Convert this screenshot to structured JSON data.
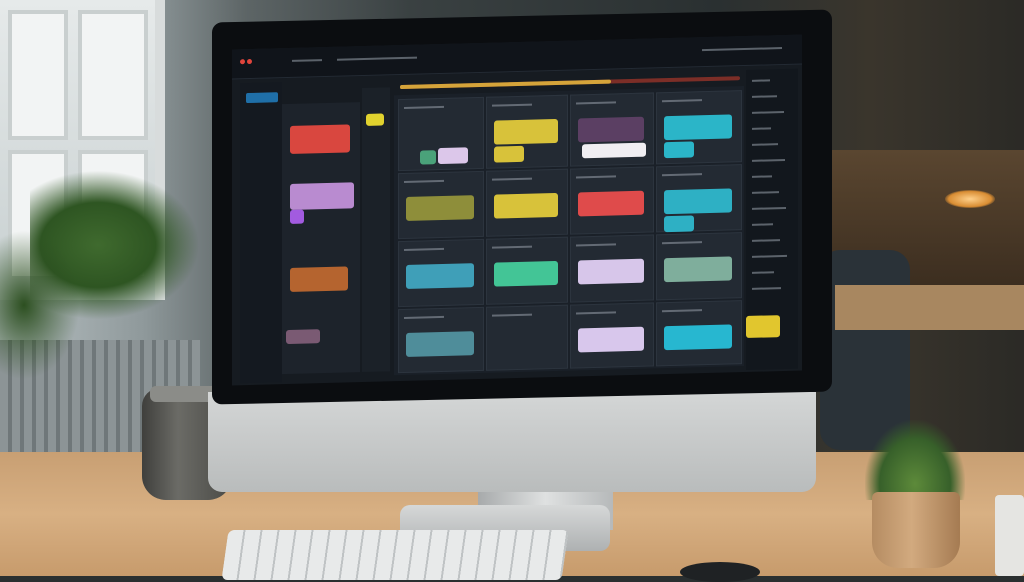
{
  "scene": {
    "colors": {
      "desk": "#d8b083",
      "bezel": "#0b0d10",
      "chin": "#d4d6d6",
      "screen_bg": "#161b21"
    }
  },
  "screen_ui": {
    "progress": 0.62,
    "colors": {
      "progress_done": "#d5a43a",
      "progress_rest": "#7c2e27",
      "sidebar_active": "#1f6fa8"
    },
    "left_column_cards": [
      "#d9473f",
      "#b98bd0",
      "#a25be0",
      "#b5642f",
      "#7a5a73"
    ],
    "board_cards": [
      [
        "#4aa27a",
        "#dcc7ea"
      ],
      [
        "#d8c23a",
        "#d8c23a"
      ],
      [
        "#5b3f63",
        "#f0eef2"
      ],
      [
        "#2bb5c8",
        "#2bb5c8"
      ],
      [
        "#8e8e3a"
      ],
      [
        "#d8c23a"
      ],
      [
        "#df4b4b"
      ],
      [
        "#2eb0c4",
        "#2eb0c4"
      ],
      [
        "#3f9fb8"
      ],
      [
        "#43c596"
      ],
      [
        "#d7c6ea"
      ],
      [
        "#7fae9c"
      ],
      [
        "#4f8d9a"
      ],
      [],
      [
        "#d8c7ec"
      ],
      [
        "#27b7d0"
      ]
    ],
    "right_panel_card": "#e1c62e",
    "narrow_column_card": "#e1d22e"
  }
}
